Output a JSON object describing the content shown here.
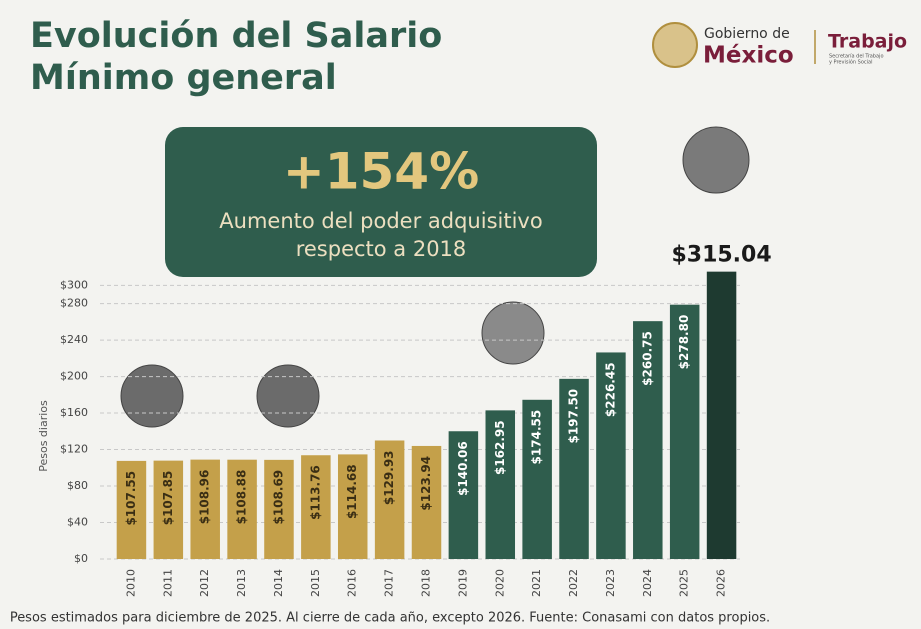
{
  "header": {
    "title": [
      "Evolución del Salario",
      "Mínimo general"
    ],
    "logo": {
      "line1": "Gobierno de",
      "line2": "México",
      "agency": "Trabajo",
      "agency_sub": [
        "Secretaría del Trabajo",
        "y Previsión Social"
      ]
    }
  },
  "highlight": {
    "value": "+154%",
    "text": [
      "Aumento del poder adquisitivo",
      "respecto a 2018"
    ]
  },
  "chart_data": {
    "type": "bar",
    "y_label": "Pesos diarios",
    "categories": [
      "2010",
      "2011",
      "2012",
      "2013",
      "2014",
      "2015",
      "2016",
      "2017",
      "2018",
      "2019",
      "2020",
      "2021",
      "2022",
      "2023",
      "2024",
      "2025",
      "2026"
    ],
    "values": [
      107.55,
      107.85,
      108.96,
      108.88,
      108.69,
      113.76,
      114.68,
      129.93,
      123.94,
      140.06,
      162.95,
      174.55,
      197.5,
      226.45,
      260.75,
      278.8,
      315.04
    ],
    "value_labels": [
      "$107.55",
      "$107.85",
      "$108.96",
      "$108.88",
      "$108.69",
      "$113.76",
      "$114.68",
      "$129.93",
      "$123.94",
      "$140.06",
      "$162.95",
      "$174.55",
      "$197.50",
      "$226.45",
      "$260.75",
      "$278.80",
      "$315.04"
    ],
    "colors": [
      "#c4a04a",
      "#c4a04a",
      "#c4a04a",
      "#c4a04a",
      "#c4a04a",
      "#c4a04a",
      "#c4a04a",
      "#c4a04a",
      "#c4a04a",
      "#2f5d4d",
      "#2f5d4d",
      "#2f5d4d",
      "#2f5d4d",
      "#2f5d4d",
      "#2f5d4d",
      "#2f5d4d",
      "#1e3a30"
    ],
    "ylim": [
      0,
      330
    ],
    "yticks": [
      {
        "value": 0,
        "label": "$0"
      },
      {
        "value": 40,
        "label": "$40"
      },
      {
        "value": 80,
        "label": "$80"
      },
      {
        "value": 120,
        "label": "$120"
      },
      {
        "value": 160,
        "label": "$160"
      },
      {
        "value": 200,
        "label": "$200"
      },
      {
        "value": 240,
        "label": "$240"
      },
      {
        "value": 280,
        "label": "$280"
      },
      {
        "value": 300,
        "label": "$300"
      }
    ],
    "grid": true,
    "footnote": "Pesos estimados para diciembre de 2025. Al cierre de cada año, excepto 2026. Fuente: Conasami con datos propios."
  }
}
